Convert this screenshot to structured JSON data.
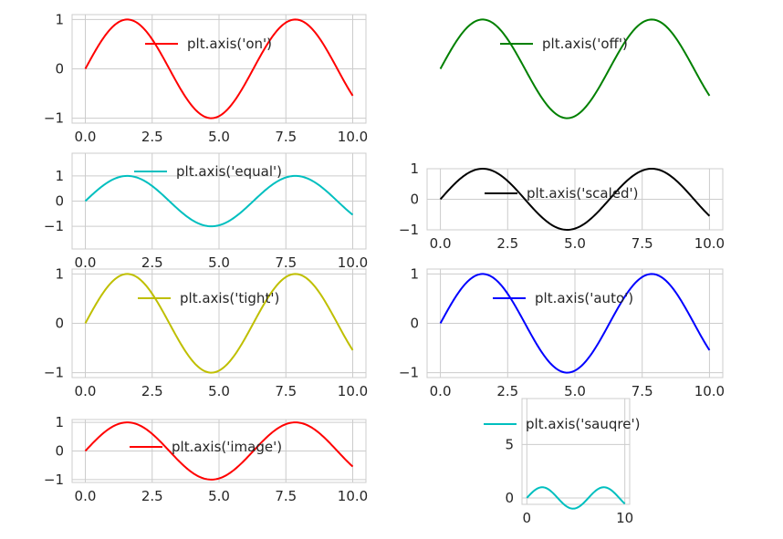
{
  "chart_data": [
    {
      "type": "line",
      "x_range": [
        0,
        10
      ],
      "ylim": [
        -1.1,
        1.1
      ],
      "x_ticks": [
        "0.0",
        "2.5",
        "5.0",
        "7.5",
        "10.0"
      ],
      "y_ticks": [
        "1",
        "0",
        "−1"
      ],
      "x_tick_values": [
        0,
        2.5,
        5,
        7.5,
        10
      ],
      "y_tick_values": [
        1,
        0,
        -1
      ],
      "grid": true,
      "axis_visible": true,
      "legend_position": "upper center",
      "series": [
        {
          "name": "plt.axis('on')",
          "color": "#ff0000",
          "function": "sin(x)"
        }
      ]
    },
    {
      "type": "line",
      "x_range": [
        0,
        10
      ],
      "ylim": [
        -1.1,
        1.1
      ],
      "x_ticks": [],
      "y_ticks": [],
      "x_tick_values": [],
      "y_tick_values": [],
      "grid": false,
      "axis_visible": false,
      "legend_position": "upper center",
      "series": [
        {
          "name": "plt.axis('off')",
          "color": "#008000",
          "function": "sin(x)"
        }
      ]
    },
    {
      "type": "line",
      "x_range": [
        0,
        10
      ],
      "ylim": [
        -1.9,
        1.9
      ],
      "x_ticks": [
        "0.0",
        "2.5",
        "5.0",
        "7.5",
        "10.0"
      ],
      "y_ticks": [
        "1",
        "0",
        "−1"
      ],
      "x_tick_values": [
        0,
        2.5,
        5,
        7.5,
        10
      ],
      "y_tick_values": [
        1,
        0,
        -1
      ],
      "grid": true,
      "axis_visible": true,
      "legend_position": "upper center",
      "series": [
        {
          "name": "plt.axis('equal')",
          "color": "#00bfbf",
          "function": "sin(x)"
        }
      ]
    },
    {
      "type": "line",
      "x_range": [
        0,
        10
      ],
      "ylim": [
        -1.0,
        1.0
      ],
      "x_ticks": [
        "0.0",
        "2.5",
        "5.0",
        "7.5",
        "10.0"
      ],
      "y_ticks": [
        "1",
        "0",
        "−1"
      ],
      "x_tick_values": [
        0,
        2.5,
        5,
        7.5,
        10
      ],
      "y_tick_values": [
        1,
        0,
        -1
      ],
      "grid": true,
      "axis_visible": true,
      "legend_position": "center",
      "series": [
        {
          "name": "plt.axis('scaled')",
          "color": "#000000",
          "function": "sin(x)"
        }
      ]
    },
    {
      "type": "line",
      "x_range": [
        0,
        10
      ],
      "ylim": [
        -1.1,
        1.1
      ],
      "x_ticks": [
        "0.0",
        "2.5",
        "5.0",
        "7.5",
        "10.0"
      ],
      "y_ticks": [
        "1",
        "0",
        "−1"
      ],
      "x_tick_values": [
        0,
        2.5,
        5,
        7.5,
        10
      ],
      "y_tick_values": [
        1,
        0,
        -1
      ],
      "grid": true,
      "axis_visible": true,
      "legend_position": "upper center",
      "series": [
        {
          "name": "plt.axis('tight')",
          "color": "#bfbf00",
          "function": "sin(x)"
        }
      ]
    },
    {
      "type": "line",
      "x_range": [
        0,
        10
      ],
      "ylim": [
        -1.1,
        1.1
      ],
      "x_ticks": [
        "0.0",
        "2.5",
        "5.0",
        "7.5",
        "10.0"
      ],
      "y_ticks": [
        "1",
        "0",
        "−1"
      ],
      "x_tick_values": [
        0,
        2.5,
        5,
        7.5,
        10
      ],
      "y_tick_values": [
        1,
        0,
        -1
      ],
      "grid": true,
      "axis_visible": true,
      "legend_position": "upper center",
      "series": [
        {
          "name": "plt.axis('auto')",
          "color": "#0000ff",
          "function": "sin(x)"
        }
      ]
    },
    {
      "type": "line",
      "x_range": [
        0,
        10
      ],
      "ylim": [
        -1.1,
        1.1
      ],
      "x_ticks": [
        "0.0",
        "2.5",
        "5.0",
        "7.5",
        "10.0"
      ],
      "y_ticks": [
        "1",
        "0",
        "−1"
      ],
      "x_tick_values": [
        0,
        2.5,
        5,
        7.5,
        10
      ],
      "y_tick_values": [
        1,
        0,
        -1
      ],
      "grid": true,
      "axis_visible": true,
      "legend_position": "center",
      "series": [
        {
          "name": "plt.axis('image')",
          "color": "#ff0000",
          "function": "sin(x)"
        }
      ]
    },
    {
      "type": "line",
      "x_range": [
        0,
        10
      ],
      "ylim": [
        -0.6,
        9.3
      ],
      "x_ticks": [
        "0",
        "10"
      ],
      "y_ticks": [
        "5",
        "0"
      ],
      "x_tick_values": [
        0,
        10
      ],
      "y_tick_values": [
        5,
        0
      ],
      "grid": true,
      "axis_visible": true,
      "legend_position": "upper center",
      "series": [
        {
          "name": "plt.axis('sauqre')",
          "color": "#00bfbf",
          "function": "sin(x)"
        }
      ]
    }
  ]
}
